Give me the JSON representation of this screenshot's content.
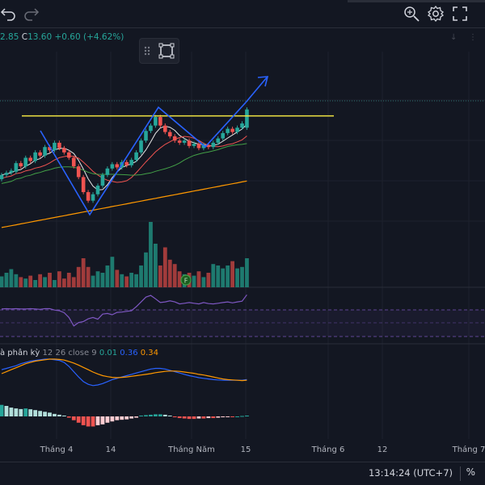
{
  "header": {
    "undo_icon": "undo-icon",
    "redo_icon": "redo-icon",
    "zoom_icon": "zoom-icon",
    "settings_icon": "gear-icon",
    "fullscreen_icon": "fullscreen-icon"
  },
  "legend": {
    "partial_open": "2.85",
    "close_label": "C",
    "close_value": "13.60",
    "change": "+0.60",
    "change_pct": "(+4.62%)"
  },
  "macd": {
    "name": "à phân kỳ",
    "params": "12 26 close 9",
    "hist": "0.01",
    "macd": "0.36",
    "signal": "0.34"
  },
  "x_axis": [
    "Tháng 4",
    "14",
    "Tháng Năm",
    "15",
    "Tháng 6",
    "12",
    "Tháng 7"
  ],
  "footer": {
    "clock": "13:14:24 (UTC+7)",
    "percent_toggle": "%"
  },
  "colors": {
    "background": "#131722",
    "up": "#26a69a",
    "down": "#ef5350",
    "resistance": "#f0e442",
    "pattern": "#2962ff",
    "ma_fast": "#e6e6e6",
    "ma_mid": "#ef5350",
    "ma_slow": "#43a047",
    "ma_long": "#ff9800",
    "rsi": "#7e57c2",
    "macd_line": "#2962ff",
    "signal_line": "#ff9800"
  },
  "chart_data": {
    "type": "candlestick",
    "candles": [
      {
        "o": 0.3,
        "c": 0.34
      },
      {
        "o": 0.34,
        "c": 0.36
      },
      {
        "o": 0.36,
        "c": 0.38
      },
      {
        "o": 0.37,
        "c": 0.45
      },
      {
        "o": 0.45,
        "c": 0.42
      },
      {
        "o": 0.42,
        "c": 0.5
      },
      {
        "o": 0.5,
        "c": 0.47
      },
      {
        "o": 0.47,
        "c": 0.55
      },
      {
        "o": 0.55,
        "c": 0.52
      },
      {
        "o": 0.52,
        "c": 0.6
      },
      {
        "o": 0.6,
        "c": 0.57
      },
      {
        "o": 0.57,
        "c": 0.64
      },
      {
        "o": 0.64,
        "c": 0.59
      },
      {
        "o": 0.59,
        "c": 0.55
      },
      {
        "o": 0.55,
        "c": 0.5
      },
      {
        "o": 0.5,
        "c": 0.42
      },
      {
        "o": 0.42,
        "c": 0.32
      },
      {
        "o": 0.32,
        "c": 0.18
      },
      {
        "o": 0.18,
        "c": 0.1
      },
      {
        "o": 0.1,
        "c": 0.16
      },
      {
        "o": 0.16,
        "c": 0.24
      },
      {
        "o": 0.24,
        "c": 0.34
      },
      {
        "o": 0.34,
        "c": 0.4
      },
      {
        "o": 0.4,
        "c": 0.44
      },
      {
        "o": 0.44,
        "c": 0.41
      },
      {
        "o": 0.41,
        "c": 0.46
      },
      {
        "o": 0.46,
        "c": 0.43
      },
      {
        "o": 0.43,
        "c": 0.48
      },
      {
        "o": 0.48,
        "c": 0.55
      },
      {
        "o": 0.55,
        "c": 0.66
      },
      {
        "o": 0.66,
        "c": 0.75
      },
      {
        "o": 0.75,
        "c": 0.8
      },
      {
        "o": 0.8,
        "c": 0.88
      },
      {
        "o": 0.88,
        "c": 0.8
      },
      {
        "o": 0.8,
        "c": 0.74
      },
      {
        "o": 0.74,
        "c": 0.7
      },
      {
        "o": 0.7,
        "c": 0.66
      },
      {
        "o": 0.66,
        "c": 0.64
      },
      {
        "o": 0.64,
        "c": 0.66
      },
      {
        "o": 0.66,
        "c": 0.61
      },
      {
        "o": 0.61,
        "c": 0.63
      },
      {
        "o": 0.63,
        "c": 0.59
      },
      {
        "o": 0.59,
        "c": 0.62
      },
      {
        "o": 0.62,
        "c": 0.6
      },
      {
        "o": 0.6,
        "c": 0.64
      },
      {
        "o": 0.64,
        "c": 0.68
      },
      {
        "o": 0.68,
        "c": 0.73
      },
      {
        "o": 0.73,
        "c": 0.77
      },
      {
        "o": 0.77,
        "c": 0.74
      },
      {
        "o": 0.74,
        "c": 0.78
      },
      {
        "o": 0.78,
        "c": 0.82
      },
      {
        "o": 0.78,
        "c": 0.95
      }
    ],
    "volume": [
      0.15,
      0.2,
      0.25,
      0.18,
      0.14,
      0.12,
      0.16,
      0.1,
      0.18,
      0.14,
      0.2,
      0.1,
      0.22,
      0.12,
      0.2,
      0.14,
      0.28,
      0.4,
      0.28,
      0.16,
      0.22,
      0.2,
      0.3,
      0.42,
      0.24,
      0.18,
      0.15,
      0.2,
      0.18,
      0.3,
      0.48,
      0.9,
      0.6,
      0.3,
      0.55,
      0.38,
      0.32,
      0.22,
      0.18,
      0.2,
      0.16,
      0.22,
      0.14,
      0.2,
      0.32,
      0.3,
      0.26,
      0.3,
      0.36,
      0.26,
      0.28,
      0.4
    ],
    "rsi": [
      0.55,
      0.56,
      0.55,
      0.56,
      0.55,
      0.55,
      0.56,
      0.55,
      0.54,
      0.56,
      0.56,
      0.52,
      0.5,
      0.44,
      0.3,
      0.05,
      0.15,
      0.18,
      0.26,
      0.3,
      0.25,
      0.4,
      0.42,
      0.38,
      0.45,
      0.46,
      0.48,
      0.5,
      0.62,
      0.76,
      0.9,
      0.95,
      0.85,
      0.74,
      0.76,
      0.79,
      0.76,
      0.7,
      0.72,
      0.74,
      0.72,
      0.7,
      0.74,
      0.71,
      0.7,
      0.72,
      0.74,
      0.76,
      0.73,
      0.76,
      0.78,
      0.97
    ],
    "macd_line": [
      0.68,
      0.72,
      0.76,
      0.8,
      0.86,
      0.9,
      0.94,
      0.96,
      0.98,
      1.0,
      1.0,
      0.98,
      0.96,
      0.9,
      0.78,
      0.62,
      0.46,
      0.32,
      0.24,
      0.2,
      0.22,
      0.26,
      0.32,
      0.38,
      0.42,
      0.46,
      0.5,
      0.54,
      0.58,
      0.62,
      0.66,
      0.7,
      0.72,
      0.72,
      0.7,
      0.66,
      0.62,
      0.58,
      0.54,
      0.5,
      0.47,
      0.44,
      0.42,
      0.4,
      0.38,
      0.37,
      0.36,
      0.36,
      0.36,
      0.36,
      0.36,
      0.38
    ],
    "signal_line": [
      0.56,
      0.62,
      0.68,
      0.74,
      0.8,
      0.86,
      0.9,
      0.94,
      0.96,
      0.98,
      1.0,
      1.0,
      0.99,
      0.97,
      0.93,
      0.88,
      0.82,
      0.75,
      0.68,
      0.61,
      0.55,
      0.5,
      0.47,
      0.45,
      0.44,
      0.45,
      0.46,
      0.48,
      0.5,
      0.52,
      0.54,
      0.56,
      0.59,
      0.61,
      0.63,
      0.64,
      0.64,
      0.63,
      0.61,
      0.59,
      0.57,
      0.54,
      0.52,
      0.49,
      0.46,
      0.43,
      0.4,
      0.38,
      0.37,
      0.36,
      0.35,
      0.36
    ],
    "histogram": [
      0.55,
      0.5,
      0.42,
      0.38,
      0.35,
      0.38,
      0.34,
      0.3,
      0.26,
      0.22,
      0.18,
      0.12,
      0.08,
      0.04,
      -0.06,
      -0.18,
      -0.3,
      -0.42,
      -0.48,
      -0.48,
      -0.42,
      -0.38,
      -0.3,
      -0.24,
      -0.18,
      -0.16,
      -0.14,
      -0.1,
      -0.06,
      0.04,
      0.06,
      0.08,
      0.1,
      0.1,
      0.08,
      0.04,
      -0.04,
      -0.08,
      -0.1,
      -0.12,
      -0.12,
      -0.1,
      -0.1,
      -0.08,
      -0.08,
      -0.06,
      -0.04,
      -0.02,
      -0.02,
      0.0,
      0.02,
      0.04
    ],
    "resistance_level": 0.89,
    "extra_badge": "F"
  }
}
